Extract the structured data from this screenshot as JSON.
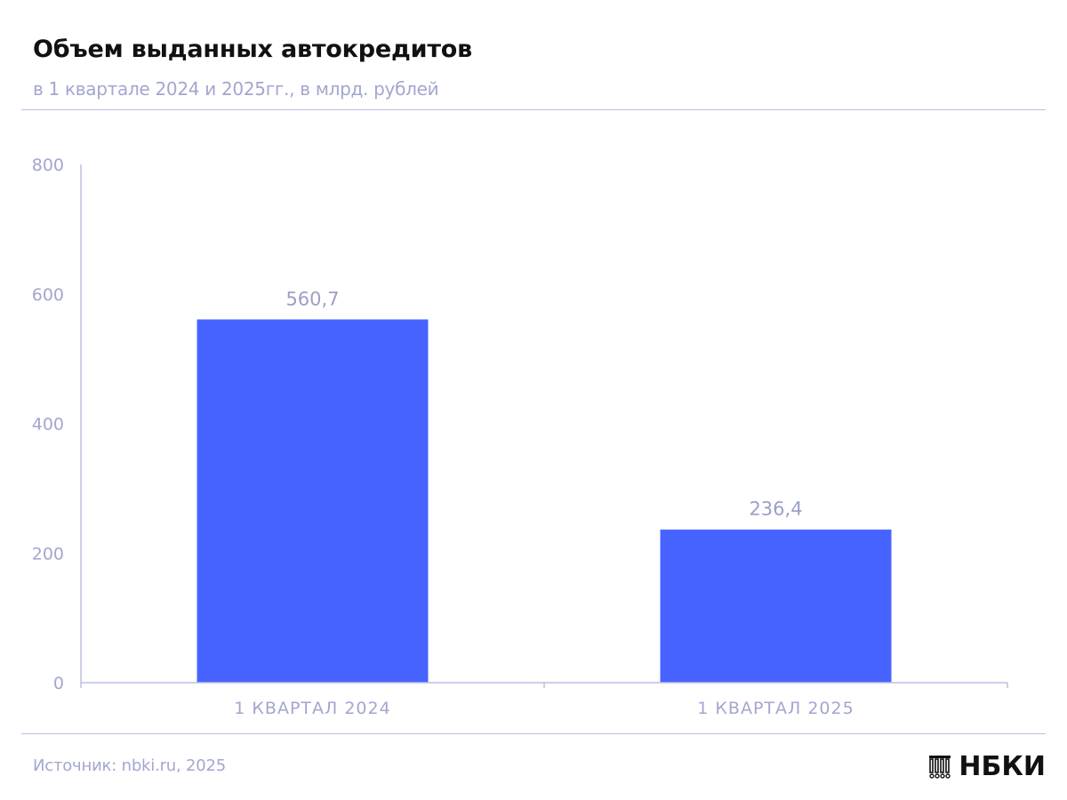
{
  "header": {
    "title": "Объем выданных автокредитов",
    "subtitle": "в 1 квартале 2024 и 2025гг., в млрд. рублей"
  },
  "footer": {
    "source": "Источник: nbki.ru, 2025",
    "logo_text": "НБКИ",
    "logo_icon": "columns-building-icon"
  },
  "colors": {
    "bar": "#4763ff",
    "axis_text": "#a3a6cf",
    "axis_line": "#bcbfe0",
    "value_label": "#9c9fc8"
  },
  "chart_data": {
    "type": "bar",
    "categories": [
      "1 КВАРТАЛ 2024",
      "1 КВАРТАЛ 2025"
    ],
    "values": [
      560.7,
      236.4
    ],
    "value_labels": [
      "560,7",
      "236,4"
    ],
    "title": "Объем выданных автокредитов",
    "subtitle": "в 1 квартале 2024 и 2025гг., в млрд. рублей",
    "xlabel": "",
    "ylabel": "",
    "ylim": [
      0,
      800
    ],
    "yticks": [
      0,
      200,
      400,
      600,
      800
    ],
    "grid": false,
    "legend": "none"
  }
}
